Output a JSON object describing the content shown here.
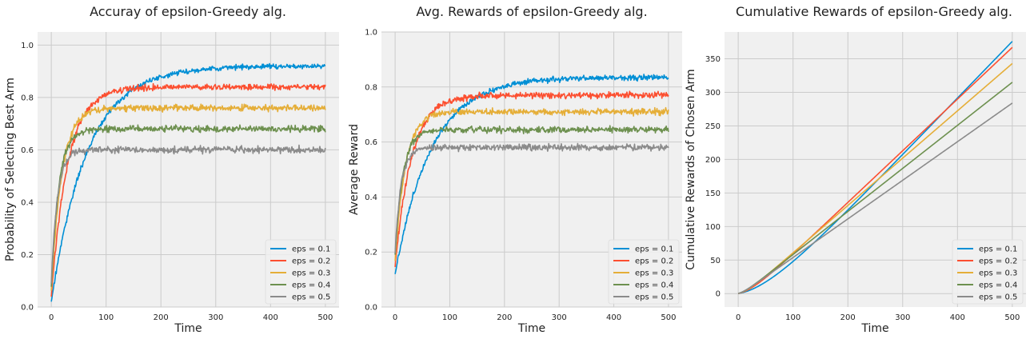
{
  "chart_data": [
    {
      "type": "line",
      "title": "Accuray of epsilon-Greedy alg.",
      "xlabel": "Time",
      "ylabel": "Probability of Selecting Best Arm",
      "xlim": [
        -25,
        525
      ],
      "ylim": [
        0.0,
        1.05
      ],
      "xticks": [
        "0",
        "100",
        "200",
        "300",
        "400",
        "500"
      ],
      "yticks": [
        "0.0",
        "0.2",
        "0.4",
        "0.6",
        "0.8",
        "1.0"
      ],
      "grid": true,
      "legend_position": "lower-right",
      "series": [
        {
          "name": "eps = 0.1",
          "color": "#008fd5",
          "start": 0.02,
          "plateau": 0.92,
          "tau": 65,
          "noise": 0.007
        },
        {
          "name": "eps = 0.2",
          "color": "#fc4f30",
          "start": 0.04,
          "plateau": 0.84,
          "tau": 30,
          "noise": 0.008
        },
        {
          "name": "eps = 0.3",
          "color": "#e5ae38",
          "start": 0.06,
          "plateau": 0.76,
          "tau": 19,
          "noise": 0.009
        },
        {
          "name": "eps = 0.4",
          "color": "#6d904f",
          "start": 0.08,
          "plateau": 0.68,
          "tau": 14,
          "noise": 0.009
        },
        {
          "name": "eps = 0.5",
          "color": "#8b8b8b",
          "start": 0.09,
          "plateau": 0.6,
          "tau": 11,
          "noise": 0.009
        }
      ]
    },
    {
      "type": "line",
      "title": "Avg. Rewards of epsilon-Greedy alg.",
      "xlabel": "Time",
      "ylabel": "Average Reward",
      "xlim": [
        -25,
        525
      ],
      "ylim": [
        0.0,
        1.0
      ],
      "xticks": [
        "0",
        "100",
        "200",
        "300",
        "400",
        "500"
      ],
      "yticks": [
        "0.0",
        "0.2",
        "0.4",
        "0.6",
        "0.8",
        "1.0"
      ],
      "grid": true,
      "legend_position": "lower-right",
      "series": [
        {
          "name": "eps = 0.1",
          "color": "#008fd5",
          "start": 0.12,
          "plateau": 0.835,
          "tau": 65,
          "noise": 0.007
        },
        {
          "name": "eps = 0.2",
          "color": "#fc4f30",
          "start": 0.15,
          "plateau": 0.77,
          "tau": 30,
          "noise": 0.008
        },
        {
          "name": "eps = 0.3",
          "color": "#e5ae38",
          "start": 0.17,
          "plateau": 0.71,
          "tau": 19,
          "noise": 0.008
        },
        {
          "name": "eps = 0.4",
          "color": "#6d904f",
          "start": 0.19,
          "plateau": 0.645,
          "tau": 14,
          "noise": 0.008
        },
        {
          "name": "eps = 0.5",
          "color": "#8b8b8b",
          "start": 0.2,
          "plateau": 0.58,
          "tau": 11,
          "noise": 0.008
        }
      ]
    },
    {
      "type": "line",
      "title": "Cumulative Rewards of epsilon-Greedy alg.",
      "xlabel": "Time",
      "ylabel": "Cumulative Rewards of Chosen Arm",
      "xlim": [
        -25,
        525
      ],
      "ylim": [
        -20,
        390
      ],
      "xticks": [
        "0",
        "100",
        "200",
        "300",
        "400",
        "500"
      ],
      "yticks": [
        "0",
        "50",
        "100",
        "150",
        "200",
        "250",
        "300",
        "350"
      ],
      "grid": true,
      "legend_position": "lower-right",
      "series": [
        {
          "name": "eps = 0.1",
          "color": "#008fd5",
          "start": 0.12,
          "plateau": 0.835,
          "tau": 65,
          "noise": 0,
          "final": 376
        },
        {
          "name": "eps = 0.2",
          "color": "#fc4f30",
          "start": 0.15,
          "plateau": 0.77,
          "tau": 30,
          "noise": 0,
          "final": 367
        },
        {
          "name": "eps = 0.3",
          "color": "#e5ae38",
          "start": 0.17,
          "plateau": 0.71,
          "tau": 19,
          "noise": 0,
          "final": 343
        },
        {
          "name": "eps = 0.4",
          "color": "#6d904f",
          "start": 0.19,
          "plateau": 0.645,
          "tau": 14,
          "noise": 0,
          "final": 315
        },
        {
          "name": "eps = 0.5",
          "color": "#8b8b8b",
          "start": 0.2,
          "plateau": 0.58,
          "tau": 11,
          "noise": 0,
          "final": 284
        }
      ]
    }
  ]
}
